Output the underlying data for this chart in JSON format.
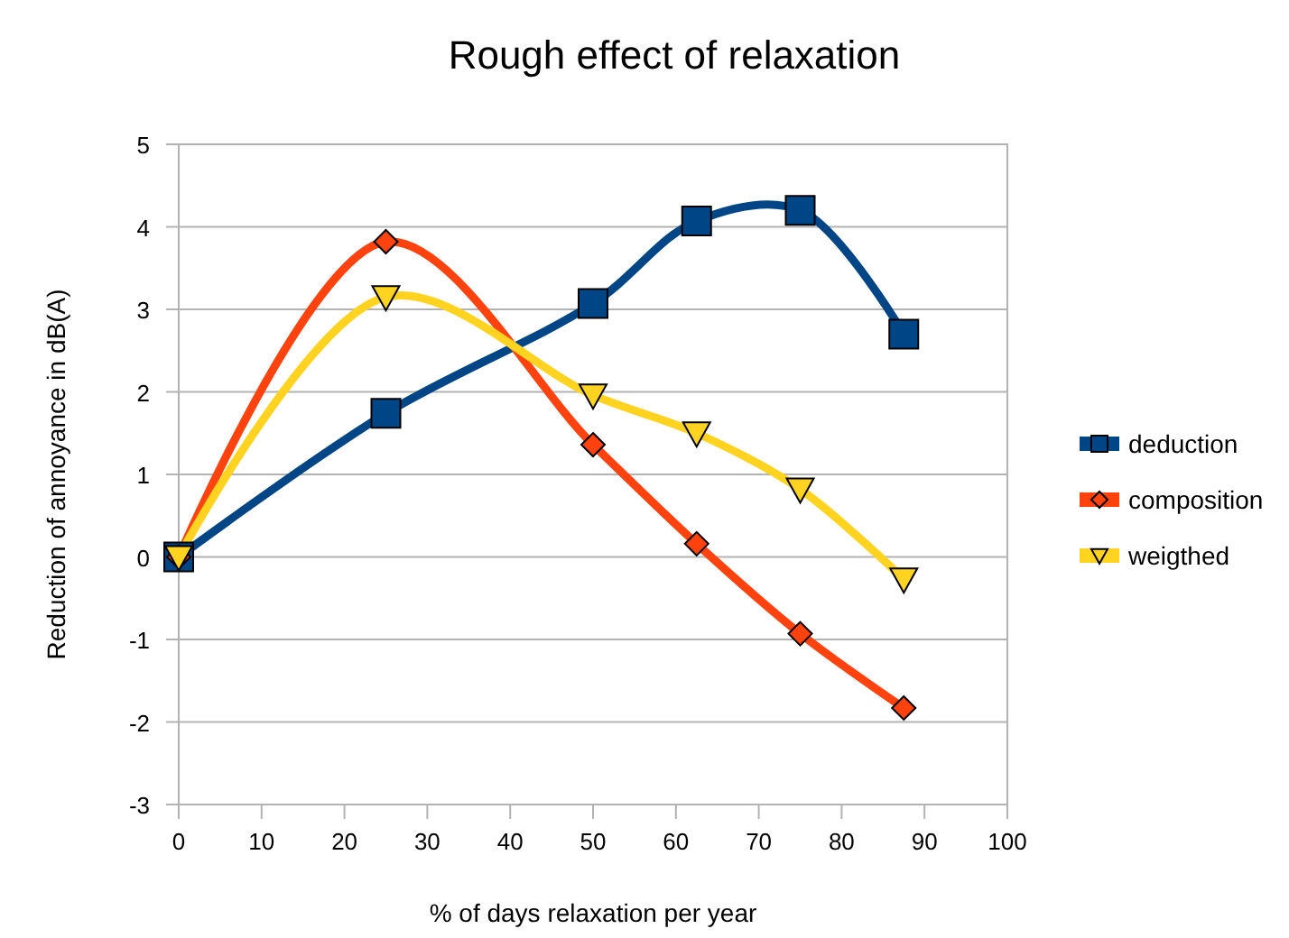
{
  "chart_data": {
    "type": "line",
    "title": "Rough effect of relaxation",
    "xlabel": "% of days relaxation per year",
    "ylabel": "Reduction of annoyance in dB(A)",
    "x": [
      0,
      25,
      50,
      62.5,
      75,
      87.5
    ],
    "series": [
      {
        "name": "deduction",
        "color": "#004586",
        "marker": "square",
        "values": [
          0,
          1.74,
          3.07,
          4.07,
          4.2,
          2.7
        ]
      },
      {
        "name": "composition",
        "color": "#ff420e",
        "marker": "diamond",
        "values": [
          0,
          3.82,
          1.36,
          0.16,
          -0.93,
          -1.83
        ]
      },
      {
        "name": "weigthed",
        "color": "#ffd320",
        "marker": "triangle",
        "values": [
          0,
          3.15,
          1.96,
          1.5,
          0.82,
          -0.27
        ]
      }
    ],
    "xlim": [
      0,
      100
    ],
    "xticks": [
      0,
      10,
      20,
      30,
      40,
      50,
      60,
      70,
      80,
      90,
      100
    ],
    "ylim": [
      -3,
      5
    ],
    "yticks": [
      -3,
      -2,
      -1,
      0,
      1,
      2,
      3,
      4,
      5
    ],
    "grid": "y",
    "legend": "right",
    "line_style": "solid"
  }
}
